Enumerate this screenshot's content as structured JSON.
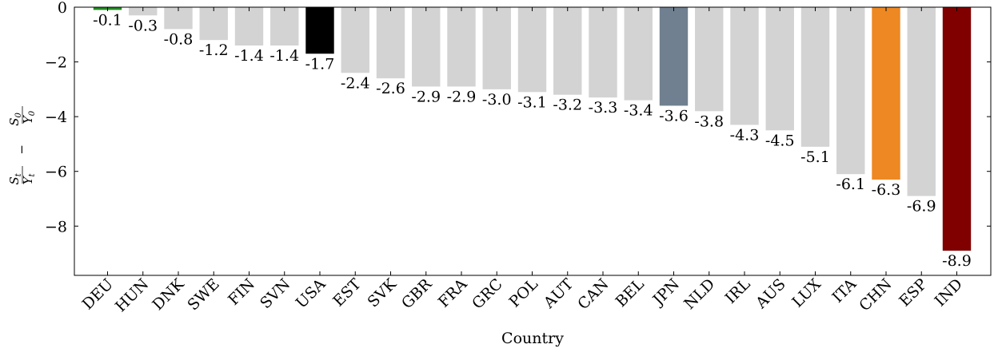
{
  "chart_data": {
    "type": "bar",
    "xlabel": "Country",
    "ylabel": "St/Yt − S0/Y0",
    "ylabel_parts": {
      "num1": "S",
      "sub1": "t",
      "den1": "Y",
      "dsub1": "t",
      "minus": "−",
      "num2": "S",
      "sub2": "0",
      "den2": "Y",
      "dsub2": "0"
    },
    "ylim": [
      -9.8,
      0
    ],
    "yticks": [
      0,
      -2,
      -4,
      -6,
      -8
    ],
    "ytick_labels": [
      "0",
      "−2",
      "−4",
      "−6",
      "−8"
    ],
    "grid": false,
    "categories": [
      "DEU",
      "HUN",
      "DNK",
      "SWE",
      "FIN",
      "SVN",
      "USA",
      "EST",
      "SVK",
      "GBR",
      "FRA",
      "GRC",
      "POL",
      "AUT",
      "CAN",
      "BEL",
      "JPN",
      "NLD",
      "IRL",
      "AUS",
      "LUX",
      "ITA",
      "CHN",
      "ESP",
      "IND"
    ],
    "values": [
      -0.1,
      -0.3,
      -0.8,
      -1.2,
      -1.4,
      -1.4,
      -1.7,
      -2.4,
      -2.6,
      -2.9,
      -2.9,
      -3.0,
      -3.1,
      -3.2,
      -3.3,
      -3.4,
      -3.6,
      -3.8,
      -4.3,
      -4.5,
      -5.1,
      -6.1,
      -6.3,
      -6.9,
      -8.9
    ],
    "data_labels": [
      "-0.1",
      "-0.3",
      "-0.8",
      "-1.2",
      "-1.4",
      "-1.4",
      "-1.7",
      "-2.4",
      "-2.6",
      "-2.9",
      "-2.9",
      "-3.0",
      "-3.1",
      "-3.2",
      "-3.3",
      "-3.4",
      "-3.6",
      "-3.8",
      "-4.3",
      "-4.5",
      "-5.1",
      "-6.1",
      "-6.3",
      "-6.9",
      "-8.9"
    ],
    "colors": [
      "#228B22",
      "#d3d3d3",
      "#d3d3d3",
      "#d3d3d3",
      "#d3d3d3",
      "#d3d3d3",
      "#000000",
      "#d3d3d3",
      "#d3d3d3",
      "#d3d3d3",
      "#d3d3d3",
      "#d3d3d3",
      "#d3d3d3",
      "#d3d3d3",
      "#d3d3d3",
      "#d3d3d3",
      "#708090",
      "#d3d3d3",
      "#d3d3d3",
      "#d3d3d3",
      "#d3d3d3",
      "#d3d3d3",
      "#ee8822",
      "#d3d3d3",
      "#800000"
    ],
    "axis_color": "#000000"
  }
}
